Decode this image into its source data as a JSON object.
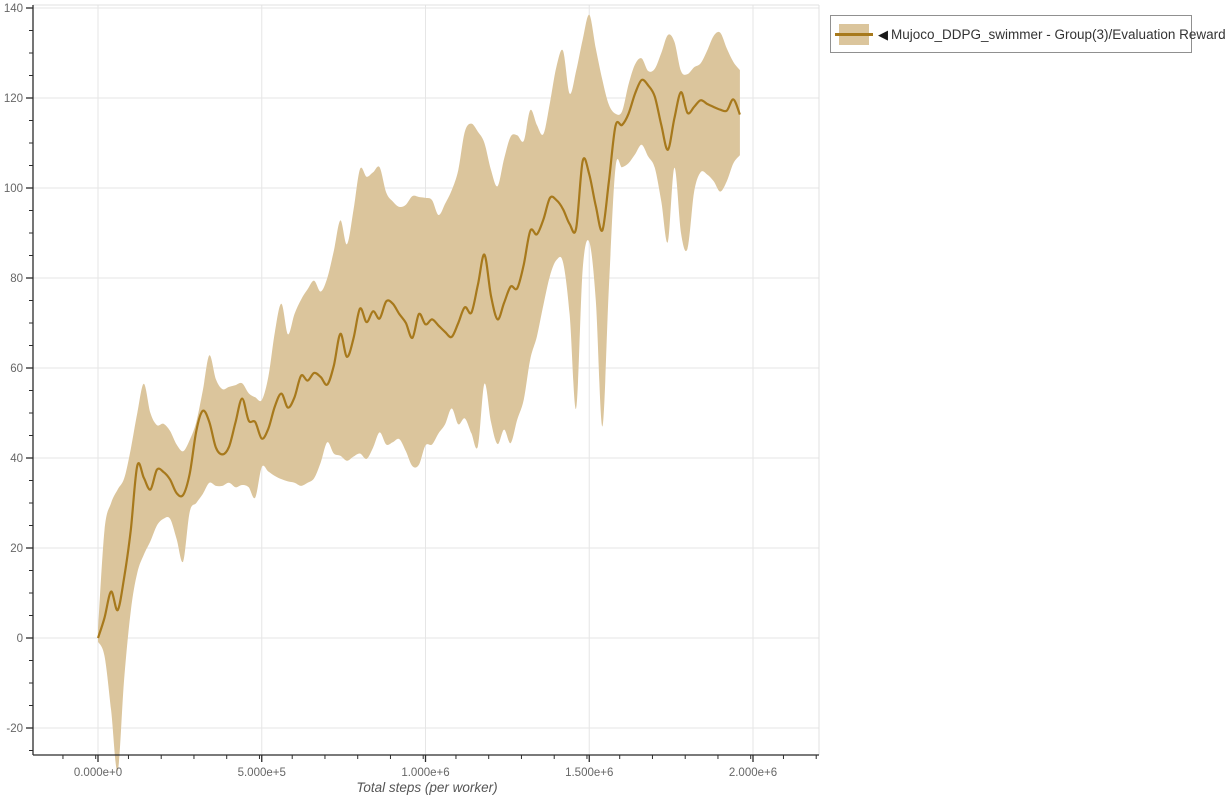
{
  "legend": {
    "collapse_icon": "◀",
    "label": "Mujoco_DDPG_swimmer - Group(3)/Evaluation Reward"
  },
  "colors": {
    "band": "#dbc59c",
    "line": "#a7791c",
    "grid": "#e6e6e6",
    "plot_border": "#e0e0e0",
    "axis": "#2b2b2b",
    "tick_label": "#666666",
    "axis_title": "#555555",
    "legend_border": "#909090",
    "legend_text": "#333333"
  },
  "chart_data": {
    "type": "line",
    "title": "",
    "xlabel": "Total steps (per worker)",
    "ylabel": "",
    "grid": true,
    "legend_position": "top-right",
    "xlim_steps": [
      -207000,
      2200000
    ],
    "ylim": [
      -26,
      140
    ],
    "x_ticks": [
      {
        "value": 0,
        "label": "0.000e+0"
      },
      {
        "value": 500000,
        "label": "5.000e+5"
      },
      {
        "value": 1000000,
        "label": "1.000e+6"
      },
      {
        "value": 1500000,
        "label": "1.500e+6"
      },
      {
        "value": 2000000,
        "label": "2.000e+6"
      }
    ],
    "x_minor_step": 100000,
    "y_ticks": [
      -20,
      0,
      20,
      40,
      60,
      80,
      100,
      120,
      140
    ],
    "y_minor_step": 5,
    "series": [
      {
        "name": "Mujoco_DDPG_swimmer - Group(3)/Evaluation Reward",
        "x_units": "environment steps",
        "x_start": 0,
        "x_step": 20000,
        "mean": [
          0,
          4.5,
          10.3,
          6.2,
          13.5,
          24,
          38.3,
          35.6,
          33,
          37.4,
          36.9,
          35.2,
          32.2,
          31.8,
          36.5,
          46,
          50.5,
          48,
          42.3,
          40.8,
          42.5,
          48,
          53.2,
          48.3,
          48,
          44.3,
          46.5,
          51.5,
          54.3,
          51.2,
          53.5,
          58.3,
          57.2,
          58.9,
          58,
          56.3,
          60.5,
          67.6,
          62.5,
          66.5,
          73.2,
          70.2,
          72.6,
          71,
          74.8,
          74.3,
          72,
          70,
          66.7,
          72,
          69.7,
          70.8,
          69.4,
          68,
          66.9,
          70,
          73.5,
          72.3,
          78.5,
          85.2,
          76,
          70.8,
          74.5,
          78.1,
          77.7,
          83,
          90.5,
          89.7,
          93,
          97.8,
          97.3,
          95.3,
          92,
          91,
          106,
          103,
          96,
          90.6,
          101.5,
          113.8,
          114,
          116.5,
          121,
          124,
          122.8,
          120.3,
          114,
          108.5,
          115.5,
          121.3,
          116.7,
          118,
          119.5,
          118.7,
          118,
          117.4,
          117.2,
          119.7,
          116.3
        ],
        "band_low": [
          -0.8,
          -4,
          -16,
          -29.5,
          -9,
          6,
          14.5,
          18.5,
          21.5,
          25,
          26.5,
          26.5,
          22,
          17,
          28,
          30,
          32,
          34.5,
          33.8,
          33.8,
          34.5,
          33.5,
          34,
          33.5,
          31.2,
          38,
          37,
          36,
          35.3,
          34.8,
          34.5,
          33.8,
          34.5,
          35.5,
          39,
          43.5,
          41,
          40.5,
          39.4,
          40.3,
          41,
          39.8,
          42.3,
          45.7,
          43,
          43.5,
          44.2,
          41.5,
          38.2,
          38.5,
          42.8,
          43,
          45.5,
          47.5,
          51,
          47.5,
          48.8,
          45.5,
          42.6,
          56.5,
          48,
          43.1,
          46.3,
          43.3,
          48.5,
          53,
          62,
          67,
          74,
          80.5,
          84,
          83.5,
          72,
          51,
          82,
          88,
          75,
          47,
          78,
          104.5,
          104.6,
          105.5,
          107.5,
          109.6,
          107,
          104.5,
          97,
          88,
          104.5,
          90,
          86.5,
          99,
          103.5,
          103,
          101.5,
          99.2,
          101.5,
          105.5,
          107.3
        ],
        "band_high": [
          1.8,
          24,
          30,
          33,
          35.5,
          42,
          50,
          56.5,
          50,
          47.3,
          47.6,
          46,
          43,
          41.5,
          44,
          48,
          55,
          62.8,
          57.5,
          55.3,
          55.8,
          56.2,
          56.6,
          54.4,
          53.5,
          52.9,
          58,
          68,
          74.3,
          67.5,
          72,
          75.2,
          77.5,
          79.4,
          77,
          80,
          86,
          92.8,
          87.5,
          95,
          104.2,
          102.5,
          103.5,
          104.6,
          99,
          97,
          95.8,
          96.3,
          98.2,
          98,
          97.8,
          97.3,
          94,
          96.5,
          99.5,
          104,
          112.5,
          114.3,
          112.5,
          110,
          104,
          100.4,
          106.5,
          111.4,
          111.7,
          110.5,
          117.3,
          114,
          112,
          119,
          127,
          130.5,
          121,
          126,
          133,
          138.5,
          131,
          124,
          118.5,
          116.5,
          117,
          123,
          127.5,
          128.8,
          126,
          126.5,
          130,
          134,
          132.5,
          126,
          125.3,
          126.8,
          127.7,
          130.5,
          133.8,
          134.5,
          131,
          128,
          126.2
        ]
      }
    ]
  }
}
